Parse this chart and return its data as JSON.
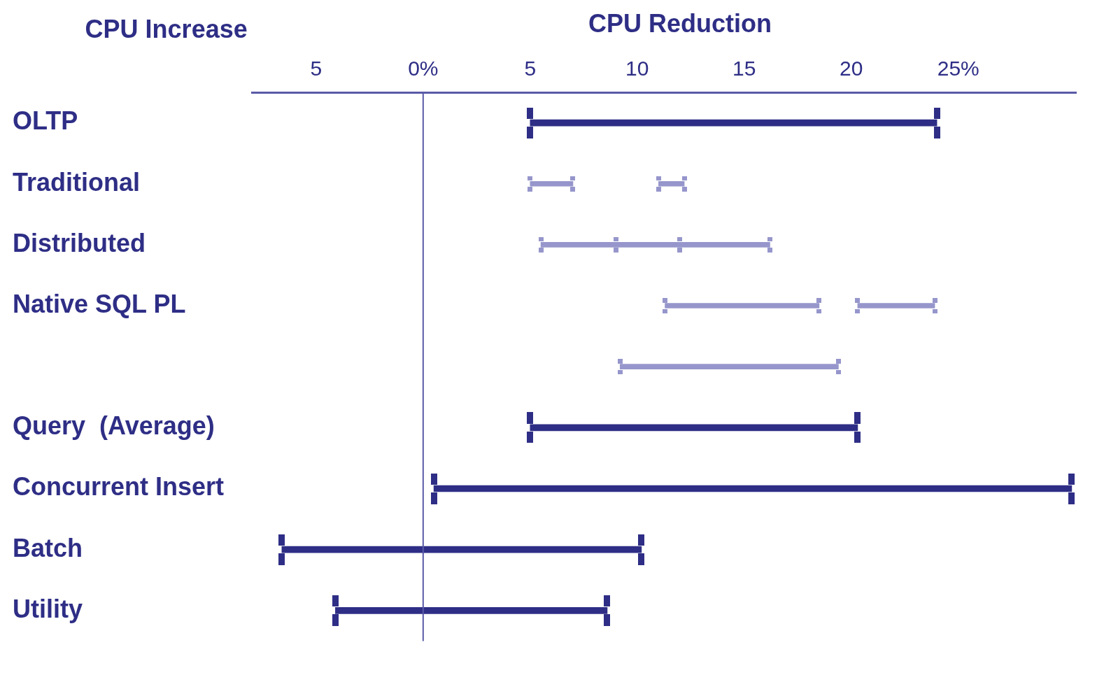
{
  "chart_data": {
    "type": "bar",
    "orientation": "horizontal",
    "xlabel": "CPU Reduction",
    "annotations": [
      "CPU Increase"
    ],
    "categories": [
      "OLTP",
      "Traditional",
      "Distributed",
      "Native SQL PL",
      null,
      "Query  (Average)",
      "Concurrent Insert",
      "Batch",
      "Utility"
    ],
    "series": [
      {
        "color": "#2e2e86",
        "base": [
          5,
          null,
          null,
          null,
          null,
          5,
          0.5,
          -6.6,
          -4.1
        ],
        "values": [
          19,
          null,
          null,
          null,
          null,
          15.3,
          29.8,
          16.8,
          12.7
        ]
      },
      {
        "color": "#9696cc",
        "base": [
          null,
          5,
          5.5,
          11.3,
          9.2,
          null,
          null,
          null,
          null
        ],
        "values": [
          null,
          2,
          3.5,
          7.2,
          10.2,
          null,
          null,
          null,
          null
        ]
      },
      {
        "color": "#9696cc",
        "base": [
          null,
          11,
          9,
          20.3,
          null,
          null,
          null,
          null,
          null
        ],
        "values": [
          null,
          1.2,
          3,
          3.6,
          null,
          null,
          null,
          null,
          null
        ]
      },
      {
        "color": "#9696cc",
        "base": [
          null,
          null,
          12,
          null,
          null,
          null,
          null,
          null,
          null
        ],
        "values": [
          null,
          null,
          4.2,
          null,
          null,
          null,
          null,
          null,
          null
        ]
      }
    ],
    "xlim": [
      -8,
      30.5
    ],
    "xticks": [
      {
        "value": -5,
        "label": "5"
      },
      {
        "value": 0,
        "label": "0%"
      },
      5,
      10,
      15,
      20,
      {
        "value": 25,
        "label": "25%"
      }
    ],
    "ref_lines": [
      {
        "axis": "x",
        "value": 0,
        "color": "#5a5aa8"
      }
    ],
    "grid": false,
    "legend": false
  }
}
